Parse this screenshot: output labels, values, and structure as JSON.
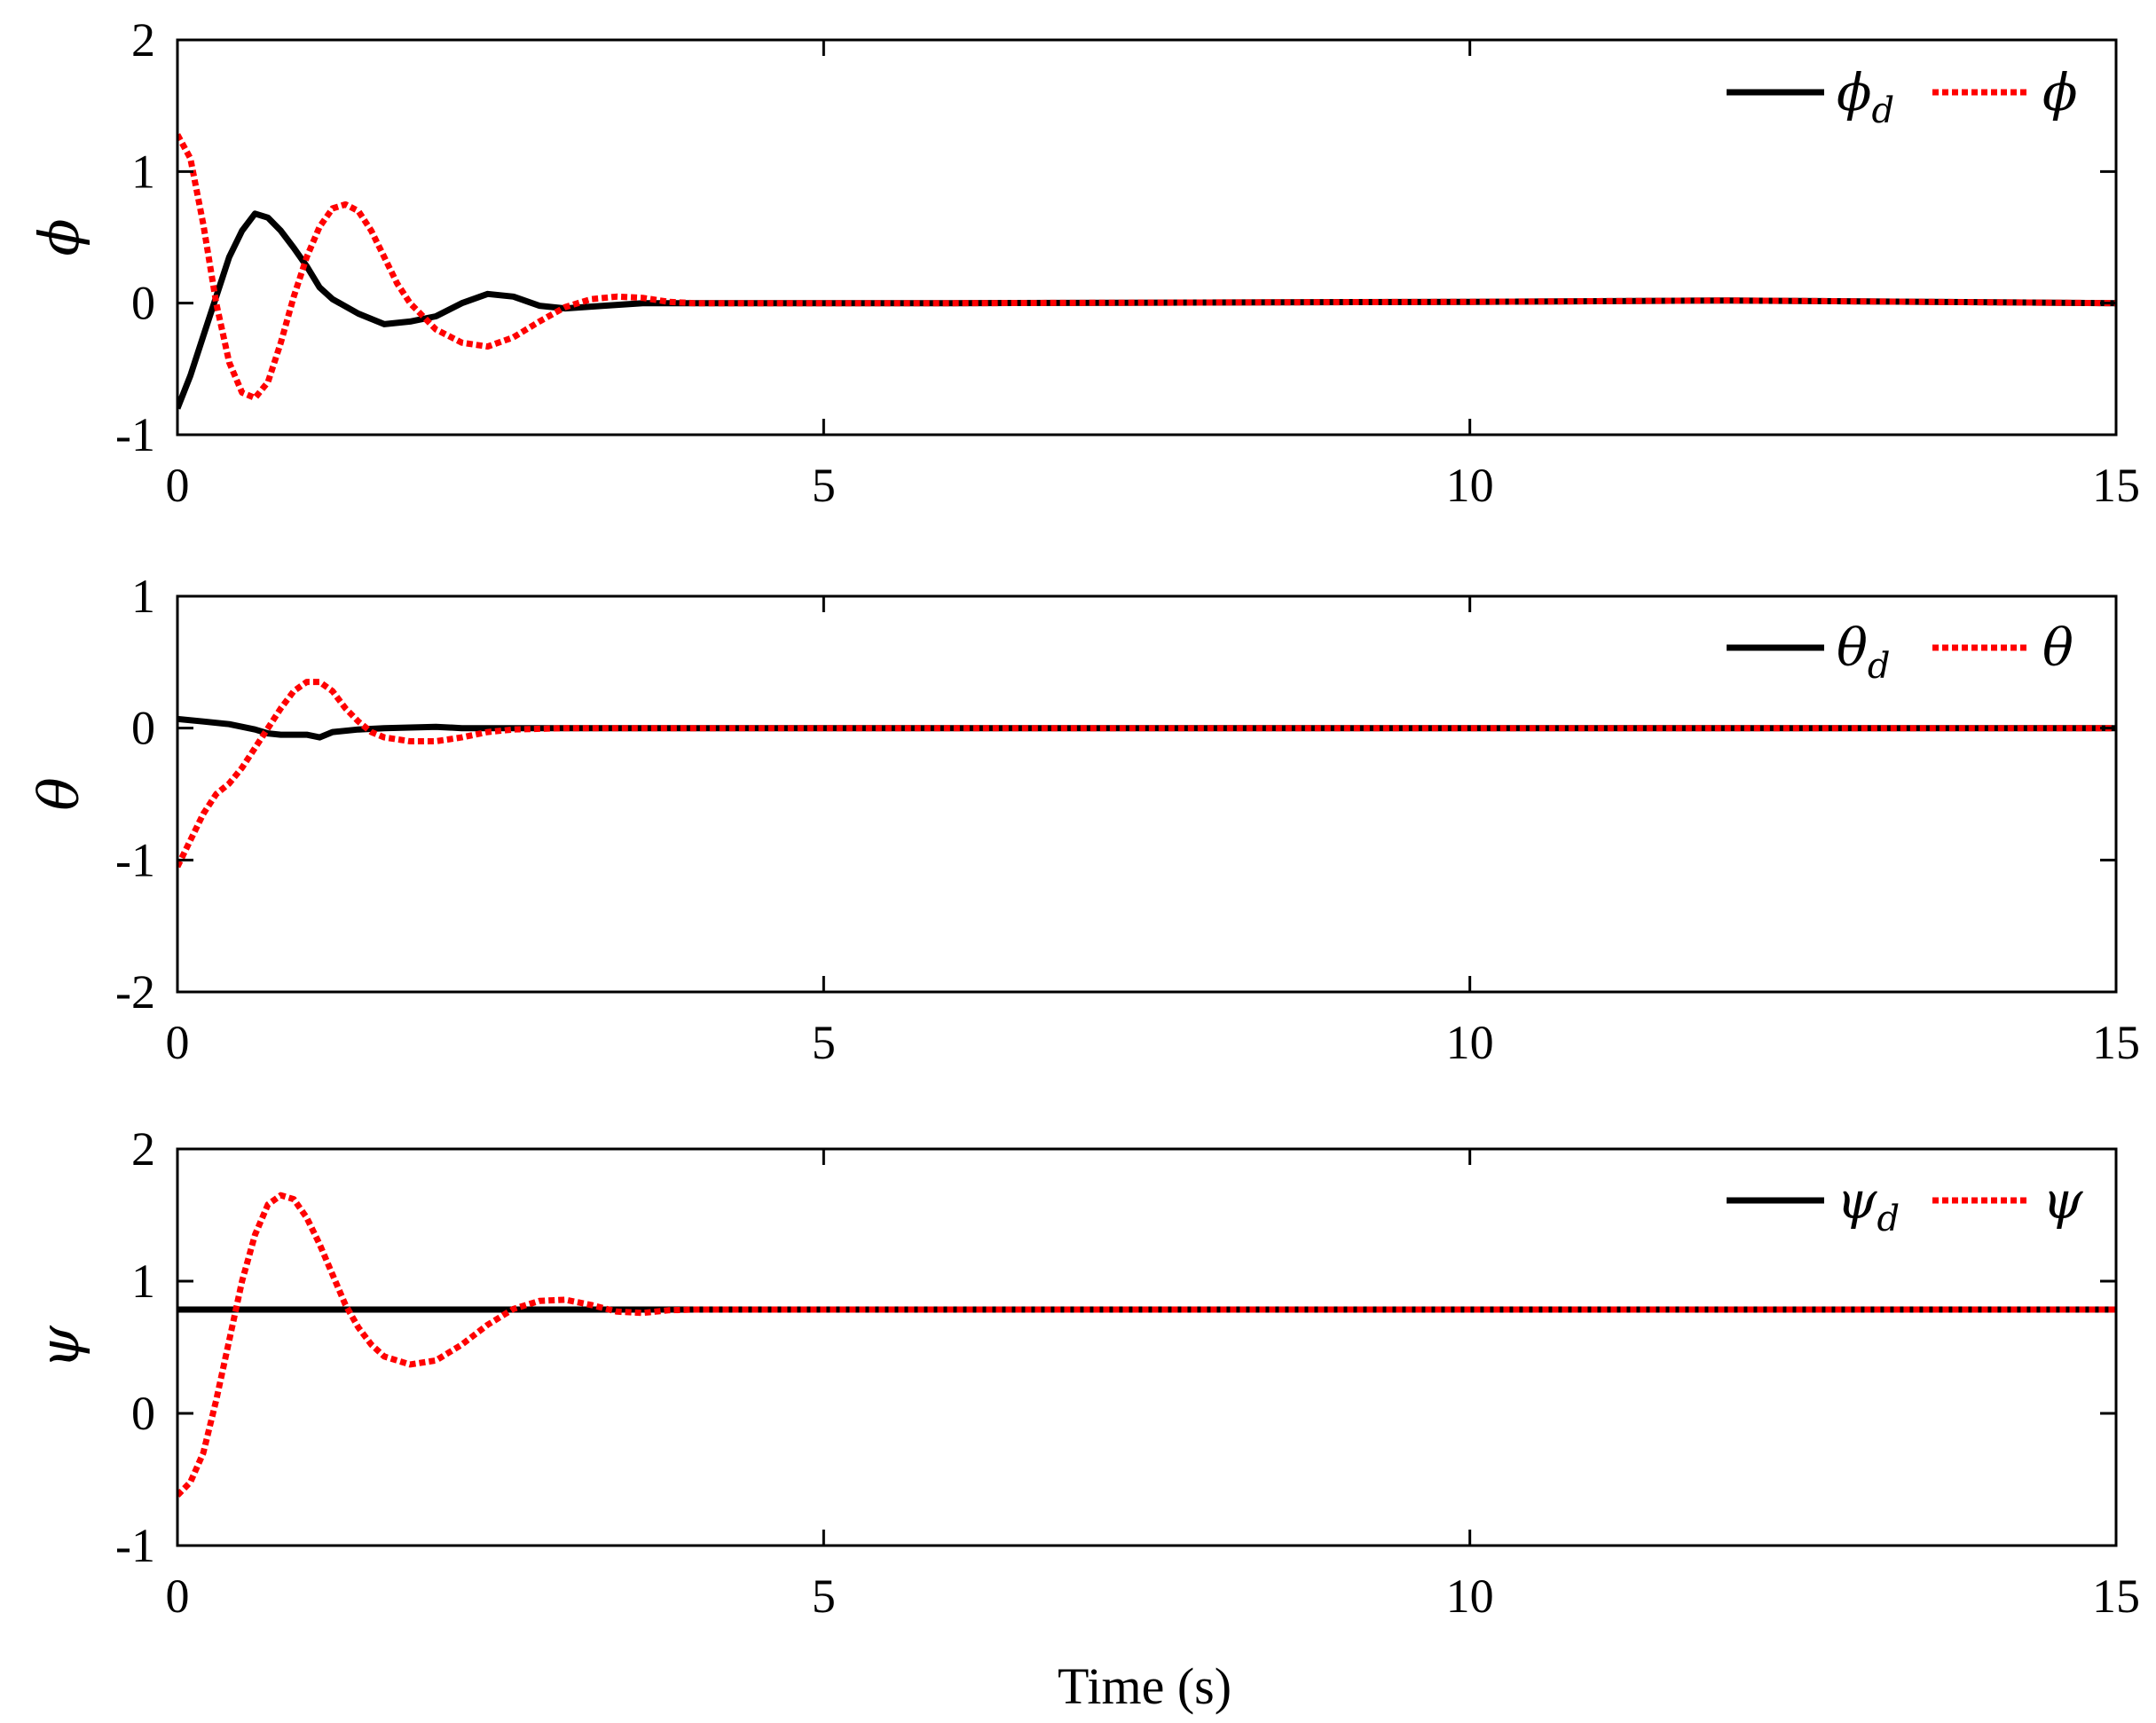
{
  "chart_data": [
    {
      "type": "line",
      "ylabel": "ϕ",
      "xlabel": "",
      "xlim": [
        0,
        15
      ],
      "ylim": [
        -1,
        2
      ],
      "xticks": [
        "0",
        "5",
        "10",
        "15"
      ],
      "yticks": [
        "-1",
        "0",
        "1",
        "2"
      ],
      "grid": false,
      "legend_position": "top-right",
      "series": [
        {
          "name": "ϕd",
          "legend_main": "ϕ",
          "legend_sub": "d",
          "color": "#000000",
          "style": "solid",
          "x": [
            0,
            0.1,
            0.2,
            0.3,
            0.4,
            0.5,
            0.6,
            0.7,
            0.8,
            0.9,
            1.0,
            1.1,
            1.2,
            1.4,
            1.6,
            1.8,
            2.0,
            2.2,
            2.4,
            2.6,
            2.8,
            3.0,
            3.3,
            3.6,
            4.0,
            6,
            10,
            12,
            15
          ],
          "y": [
            -0.8,
            -0.55,
            -0.25,
            0.05,
            0.35,
            0.55,
            0.68,
            0.65,
            0.55,
            0.42,
            0.28,
            0.12,
            0.03,
            -0.08,
            -0.16,
            -0.14,
            -0.1,
            0.0,
            0.07,
            0.05,
            -0.02,
            -0.04,
            -0.02,
            0.0,
            0.0,
            0.0,
            0.01,
            0.02,
            0.0
          ]
        },
        {
          "name": "ϕ",
          "legend_main": "ϕ",
          "legend_sub": "",
          "color": "#ff0000",
          "style": "dotted",
          "x": [
            0,
            0.1,
            0.2,
            0.3,
            0.4,
            0.5,
            0.6,
            0.7,
            0.8,
            0.9,
            1.0,
            1.1,
            1.2,
            1.3,
            1.4,
            1.5,
            1.6,
            1.7,
            1.8,
            2.0,
            2.2,
            2.4,
            2.6,
            2.8,
            3.0,
            3.2,
            3.4,
            3.6,
            3.8,
            4.0,
            6,
            10,
            12,
            15
          ],
          "y": [
            1.28,
            1.1,
            0.6,
            0.0,
            -0.45,
            -0.68,
            -0.72,
            -0.6,
            -0.3,
            0.05,
            0.35,
            0.58,
            0.72,
            0.75,
            0.7,
            0.55,
            0.35,
            0.15,
            0.0,
            -0.2,
            -0.3,
            -0.33,
            -0.26,
            -0.14,
            -0.03,
            0.03,
            0.05,
            0.04,
            0.01,
            0.0,
            0.0,
            0.01,
            0.02,
            0.0
          ]
        }
      ]
    },
    {
      "type": "line",
      "ylabel": "θ",
      "xlabel": "",
      "xlim": [
        0,
        15
      ],
      "ylim": [
        -2,
        1
      ],
      "xticks": [
        "0",
        "5",
        "10",
        "15"
      ],
      "yticks": [
        "-2",
        "-1",
        "0",
        "1"
      ],
      "grid": false,
      "legend_position": "top-right",
      "series": [
        {
          "name": "θd",
          "legend_main": "θ",
          "legend_sub": "d",
          "color": "#000000",
          "style": "solid",
          "x": [
            0,
            0.2,
            0.4,
            0.6,
            0.7,
            0.8,
            1.0,
            1.1,
            1.2,
            1.4,
            1.6,
            2.0,
            2.2,
            2.4,
            3.0,
            3.4,
            4.0,
            6,
            10,
            15
          ],
          "y": [
            0.07,
            0.05,
            0.03,
            -0.01,
            -0.04,
            -0.05,
            -0.05,
            -0.07,
            -0.03,
            -0.01,
            0.0,
            0.01,
            0.0,
            0.0,
            0.0,
            0.0,
            0.0,
            0.0,
            0.0,
            0.0
          ]
        },
        {
          "name": "θ",
          "legend_main": "θ",
          "legend_sub": "",
          "color": "#ff0000",
          "style": "dotted",
          "x": [
            0,
            0.1,
            0.2,
            0.3,
            0.4,
            0.5,
            0.6,
            0.7,
            0.8,
            0.9,
            1.0,
            1.1,
            1.2,
            1.3,
            1.4,
            1.5,
            1.6,
            1.8,
            2.0,
            2.2,
            2.4,
            2.6,
            3.0,
            3.4,
            4.0,
            6,
            10,
            15
          ],
          "y": [
            -1.05,
            -0.85,
            -0.65,
            -0.5,
            -0.42,
            -0.3,
            -0.15,
            0.0,
            0.15,
            0.28,
            0.35,
            0.35,
            0.28,
            0.15,
            0.05,
            -0.03,
            -0.07,
            -0.1,
            -0.1,
            -0.07,
            -0.03,
            -0.01,
            0.0,
            0.0,
            0.0,
            0.0,
            0.0,
            0.0
          ]
        }
      ]
    },
    {
      "type": "line",
      "ylabel": "ψ",
      "xlabel": "Time (s)",
      "xlim": [
        0,
        15
      ],
      "ylim": [
        -1,
        2
      ],
      "xticks": [
        "0",
        "5",
        "10",
        "15"
      ],
      "yticks": [
        "-1",
        "0",
        "1",
        "2"
      ],
      "grid": false,
      "legend_position": "top-right",
      "series": [
        {
          "name": "ψd",
          "legend_main": "ψ",
          "legend_sub": "d",
          "color": "#000000",
          "style": "solid",
          "x": [
            0,
            15
          ],
          "y": [
            0.785,
            0.785
          ]
        },
        {
          "name": "ψ",
          "legend_main": "ψ",
          "legend_sub": "",
          "color": "#ff0000",
          "style": "dotted",
          "x": [
            0,
            0.1,
            0.2,
            0.3,
            0.4,
            0.5,
            0.6,
            0.7,
            0.8,
            0.9,
            1.0,
            1.1,
            1.2,
            1.3,
            1.4,
            1.5,
            1.6,
            1.8,
            2.0,
            2.2,
            2.4,
            2.6,
            2.8,
            3.0,
            3.2,
            3.4,
            3.6,
            3.8,
            4.0,
            6,
            10,
            15
          ],
          "y": [
            -0.62,
            -0.52,
            -0.3,
            0.1,
            0.55,
            1.0,
            1.35,
            1.58,
            1.65,
            1.62,
            1.48,
            1.28,
            1.05,
            0.82,
            0.65,
            0.52,
            0.43,
            0.37,
            0.4,
            0.52,
            0.67,
            0.79,
            0.85,
            0.86,
            0.82,
            0.77,
            0.76,
            0.78,
            0.785,
            0.785,
            0.785,
            0.785
          ]
        }
      ]
    }
  ]
}
